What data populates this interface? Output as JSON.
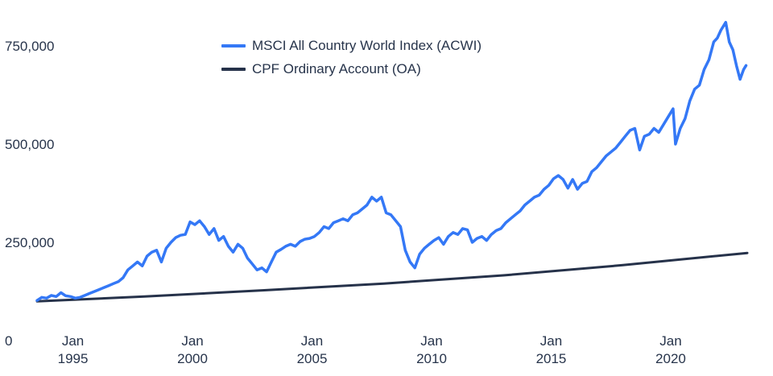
{
  "chart_data": {
    "type": "line",
    "title": "",
    "xlabel": "",
    "ylabel": "",
    "ylim": [
      0,
      800000
    ],
    "xlim": [
      1993.5,
      2023.2
    ],
    "grid": false,
    "legend_position": "top-center",
    "y_ticks": [
      {
        "value": 0,
        "label": "0"
      },
      {
        "value": 250000,
        "label": "250,000"
      },
      {
        "value": 500000,
        "label": "500,000"
      },
      {
        "value": 750000,
        "label": "750,000"
      }
    ],
    "x_ticks": [
      {
        "value": 1995,
        "line1": "Jan",
        "line2": "1995"
      },
      {
        "value": 2000,
        "line1": "Jan",
        "line2": "2000"
      },
      {
        "value": 2005,
        "line1": "Jan",
        "line2": "2005"
      },
      {
        "value": 2010,
        "line1": "Jan",
        "line2": "2010"
      },
      {
        "value": 2015,
        "line1": "Jan",
        "line2": "2015"
      },
      {
        "value": 2020,
        "line1": "Jan",
        "line2": "2020"
      }
    ],
    "series": [
      {
        "name": "MSCI All Country World Index (ACWI)",
        "color": "#3478f6",
        "x": [
          1993.5,
          1993.7,
          1993.9,
          1994.1,
          1994.3,
          1994.5,
          1994.7,
          1994.9,
          1995.1,
          1995.3,
          1995.5,
          1995.7,
          1995.9,
          1996.1,
          1996.3,
          1996.5,
          1996.7,
          1996.9,
          1997.1,
          1997.3,
          1997.5,
          1997.7,
          1997.9,
          1998.1,
          1998.3,
          1998.5,
          1998.7,
          1998.9,
          1999.1,
          1999.3,
          1999.5,
          1999.7,
          1999.9,
          2000.1,
          2000.3,
          2000.5,
          2000.7,
          2000.9,
          2001.1,
          2001.3,
          2001.5,
          2001.7,
          2001.9,
          2002.1,
          2002.3,
          2002.5,
          2002.7,
          2002.9,
          2003.1,
          2003.3,
          2003.5,
          2003.7,
          2003.9,
          2004.1,
          2004.3,
          2004.5,
          2004.7,
          2004.9,
          2005.1,
          2005.3,
          2005.5,
          2005.7,
          2005.9,
          2006.1,
          2006.3,
          2006.5,
          2006.7,
          2006.9,
          2007.1,
          2007.3,
          2007.5,
          2007.7,
          2007.9,
          2008.1,
          2008.3,
          2008.5,
          2008.7,
          2008.9,
          2009.1,
          2009.3,
          2009.5,
          2009.7,
          2009.9,
          2010.1,
          2010.3,
          2010.5,
          2010.7,
          2010.9,
          2011.1,
          2011.3,
          2011.5,
          2011.7,
          2011.9,
          2012.1,
          2012.3,
          2012.5,
          2012.7,
          2012.9,
          2013.1,
          2013.3,
          2013.5,
          2013.7,
          2013.9,
          2014.1,
          2014.3,
          2014.5,
          2014.7,
          2014.9,
          2015.1,
          2015.3,
          2015.5,
          2015.7,
          2015.9,
          2016.1,
          2016.3,
          2016.5,
          2016.7,
          2016.9,
          2017.1,
          2017.3,
          2017.5,
          2017.7,
          2017.9,
          2018.1,
          2018.3,
          2018.5,
          2018.7,
          2018.9,
          2019.1,
          2019.3,
          2019.5,
          2019.7,
          2019.9,
          2020.1,
          2020.2,
          2020.4,
          2020.6,
          2020.8,
          2021.0,
          2021.2,
          2021.4,
          2021.6,
          2021.8,
          2021.95,
          2022.1,
          2022.3,
          2022.45,
          2022.6,
          2022.75,
          2022.9,
          2023.05,
          2023.15
        ],
        "values": [
          102000,
          110000,
          108000,
          115000,
          112000,
          122000,
          114000,
          112000,
          108000,
          110000,
          115000,
          120000,
          125000,
          130000,
          135000,
          140000,
          145000,
          150000,
          160000,
          180000,
          190000,
          200000,
          190000,
          215000,
          225000,
          230000,
          200000,
          235000,
          250000,
          262000,
          268000,
          270000,
          302000,
          295000,
          305000,
          290000,
          270000,
          285000,
          255000,
          265000,
          240000,
          225000,
          245000,
          235000,
          210000,
          195000,
          180000,
          185000,
          175000,
          200000,
          225000,
          232000,
          240000,
          245000,
          240000,
          252000,
          258000,
          260000,
          265000,
          275000,
          290000,
          285000,
          300000,
          305000,
          310000,
          305000,
          320000,
          325000,
          335000,
          345000,
          365000,
          355000,
          365000,
          325000,
          320000,
          305000,
          290000,
          230000,
          200000,
          185000,
          220000,
          235000,
          245000,
          255000,
          262000,
          245000,
          265000,
          275000,
          270000,
          285000,
          282000,
          250000,
          260000,
          265000,
          255000,
          270000,
          280000,
          285000,
          300000,
          310000,
          320000,
          330000,
          345000,
          355000,
          365000,
          370000,
          385000,
          395000,
          412000,
          420000,
          410000,
          388000,
          410000,
          385000,
          400000,
          405000,
          430000,
          440000,
          455000,
          470000,
          480000,
          490000,
          505000,
          520000,
          535000,
          540000,
          485000,
          520000,
          525000,
          540000,
          530000,
          550000,
          570000,
          590000,
          500000,
          540000,
          565000,
          610000,
          640000,
          650000,
          690000,
          715000,
          760000,
          770000,
          790000,
          810000,
          760000,
          740000,
          700000,
          665000,
          690000,
          700000
        ]
      },
      {
        "name": "CPF Ordinary Account (OA)",
        "color": "#26324a",
        "x": [
          1993.5,
          1998.0,
          2003.0,
          2008.0,
          2013.0,
          2018.0,
          2023.2
        ],
        "values": [
          100000,
          112000,
          128000,
          145000,
          166000,
          192000,
          223000
        ]
      }
    ]
  }
}
